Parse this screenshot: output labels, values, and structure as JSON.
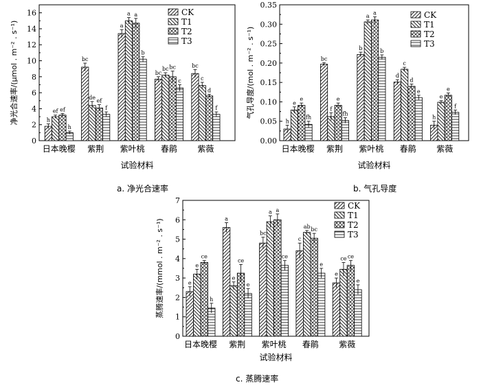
{
  "legend": [
    "CK",
    "T1",
    "T2",
    "T3"
  ],
  "captions": [
    "a.  净光合速率",
    "b.  气孔导度",
    "c.  蒸腾速率"
  ],
  "chart_data": [
    {
      "type": "bar",
      "title": "",
      "xlabel": "试验材料",
      "ylabel": "净光合速率/(μmol . m⁻² . s⁻¹)",
      "ylim": [
        0,
        17
      ],
      "yticks": [
        0,
        2,
        4,
        6,
        8,
        10,
        12,
        14,
        16
      ],
      "ytick_labels": [
        "0",
        "2",
        "4",
        "6",
        "8",
        "10",
        "12",
        "14",
        "16"
      ],
      "categories": [
        "日本晚樱",
        "紫荆",
        "紫叶桃",
        "春鹃",
        "紫薇"
      ],
      "legend_position": "top-right",
      "series": [
        {
          "name": "CK",
          "values": [
            1.8,
            9.2,
            13.4,
            7.7,
            8.4
          ],
          "errors": [
            0.3,
            0.5,
            0.5,
            0.3,
            0.5
          ],
          "labels": [
            "h",
            "bc",
            "a",
            "bc",
            "bc"
          ]
        },
        {
          "name": "T1",
          "values": [
            3.0,
            4.4,
            15.0,
            8.2,
            6.9
          ],
          "errors": [
            0.2,
            0.5,
            0.4,
            0.3,
            0.4
          ],
          "labels": [
            "ef",
            "de",
            "a",
            "bc",
            "c"
          ]
        },
        {
          "name": "T2",
          "values": [
            3.2,
            4.1,
            14.7,
            8.0,
            5.6
          ],
          "errors": [
            0.2,
            0.4,
            0.6,
            0.7,
            0.2
          ],
          "labels": [
            "ef",
            "ef",
            "a",
            "bc",
            "d"
          ]
        },
        {
          "name": "T3",
          "values": [
            1.0,
            3.3,
            10.2,
            6.6,
            3.3
          ],
          "errors": [
            0.2,
            0.3,
            0.3,
            0.4,
            0.3
          ],
          "labels": [
            "h",
            "f",
            "b",
            "c",
            "f"
          ]
        }
      ]
    },
    {
      "type": "bar",
      "title": "",
      "xlabel": "试验材料",
      "ylabel": "气孔导度/(mol . m⁻² . s⁻¹)",
      "ylim": [
        0,
        0.35
      ],
      "yticks": [
        0,
        0.05,
        0.1,
        0.15,
        0.2,
        0.25,
        0.3,
        0.35
      ],
      "ytick_labels": [
        "0.00",
        "0.05",
        "0.10",
        "0.15",
        "0.20",
        "0.25",
        "0.30",
        "0.35"
      ],
      "categories": [
        "日本晚樱",
        "紫荆",
        "紫叶桃",
        "春鹃",
        "紫薇"
      ],
      "legend_position": "top-right",
      "series": [
        {
          "name": "CK",
          "values": [
            0.03,
            0.197,
            0.222,
            0.151,
            0.04
          ],
          "errors": [
            0.01,
            0.004,
            0.006,
            0.006,
            0.01
          ],
          "labels": [
            "h",
            "bc",
            "b",
            "d",
            "h"
          ]
        },
        {
          "name": "T1",
          "values": [
            0.079,
            0.062,
            0.306,
            0.184,
            0.099
          ],
          "errors": [
            0.008,
            0.01,
            0.005,
            0.005,
            0.004
          ],
          "labels": [
            "e",
            "f",
            "a",
            "c",
            "e"
          ]
        },
        {
          "name": "T2",
          "values": [
            0.091,
            0.091,
            0.311,
            0.14,
            0.117
          ],
          "errors": [
            0.006,
            0.006,
            0.008,
            0.006,
            0.006
          ],
          "labels": [
            "e",
            "e",
            "a",
            "d",
            "e"
          ]
        },
        {
          "name": "T3",
          "values": [
            0.042,
            0.052,
            0.215,
            0.111,
            0.073
          ],
          "errors": [
            0.008,
            0.007,
            0.006,
            0.006,
            0.006
          ],
          "labels": [
            "fh",
            "fh",
            "b",
            "e",
            "f"
          ]
        }
      ]
    },
    {
      "type": "bar",
      "title": "",
      "xlabel": "试验材料",
      "ylabel": "蒸腾速率/(mmol . m⁻² . s⁻¹)",
      "ylim": [
        0,
        7
      ],
      "yticks": [
        0,
        1,
        2,
        3,
        4,
        5,
        6,
        7
      ],
      "ytick_labels": [
        "0",
        "1",
        "2",
        "3",
        "4",
        "5",
        "6",
        "7"
      ],
      "categories": [
        "日本晚樱",
        "紫荆",
        "紫叶桃",
        "春鹃",
        "紫薇"
      ],
      "legend_position": "top-right",
      "series": [
        {
          "name": "CK",
          "values": [
            2.3,
            5.6,
            4.8,
            4.4,
            2.75
          ],
          "errors": [
            0.25,
            0.25,
            0.3,
            0.4,
            0.25
          ],
          "labels": [
            "e",
            "a",
            "bc",
            "c",
            "e"
          ]
        },
        {
          "name": "T1",
          "values": [
            3.2,
            2.6,
            5.9,
            5.35,
            3.45
          ],
          "errors": [
            0.25,
            0.2,
            0.3,
            0.1,
            0.35
          ],
          "labels": [
            "e",
            "e",
            "a",
            "ab",
            "ce"
          ]
        },
        {
          "name": "T2",
          "values": [
            3.8,
            3.25,
            6.0,
            5.05,
            3.65
          ],
          "errors": [
            0.1,
            0.45,
            0.3,
            0.25,
            0.25
          ],
          "labels": [
            "ce",
            "ce",
            "a",
            "bc",
            "ce"
          ]
        },
        {
          "name": "T3",
          "values": [
            1.45,
            2.2,
            3.65,
            3.25,
            2.4
          ],
          "errors": [
            0.25,
            0.25,
            0.25,
            0.25,
            0.25
          ],
          "labels": [
            "h",
            "e",
            "ce",
            "e",
            "e"
          ]
        }
      ]
    }
  ]
}
